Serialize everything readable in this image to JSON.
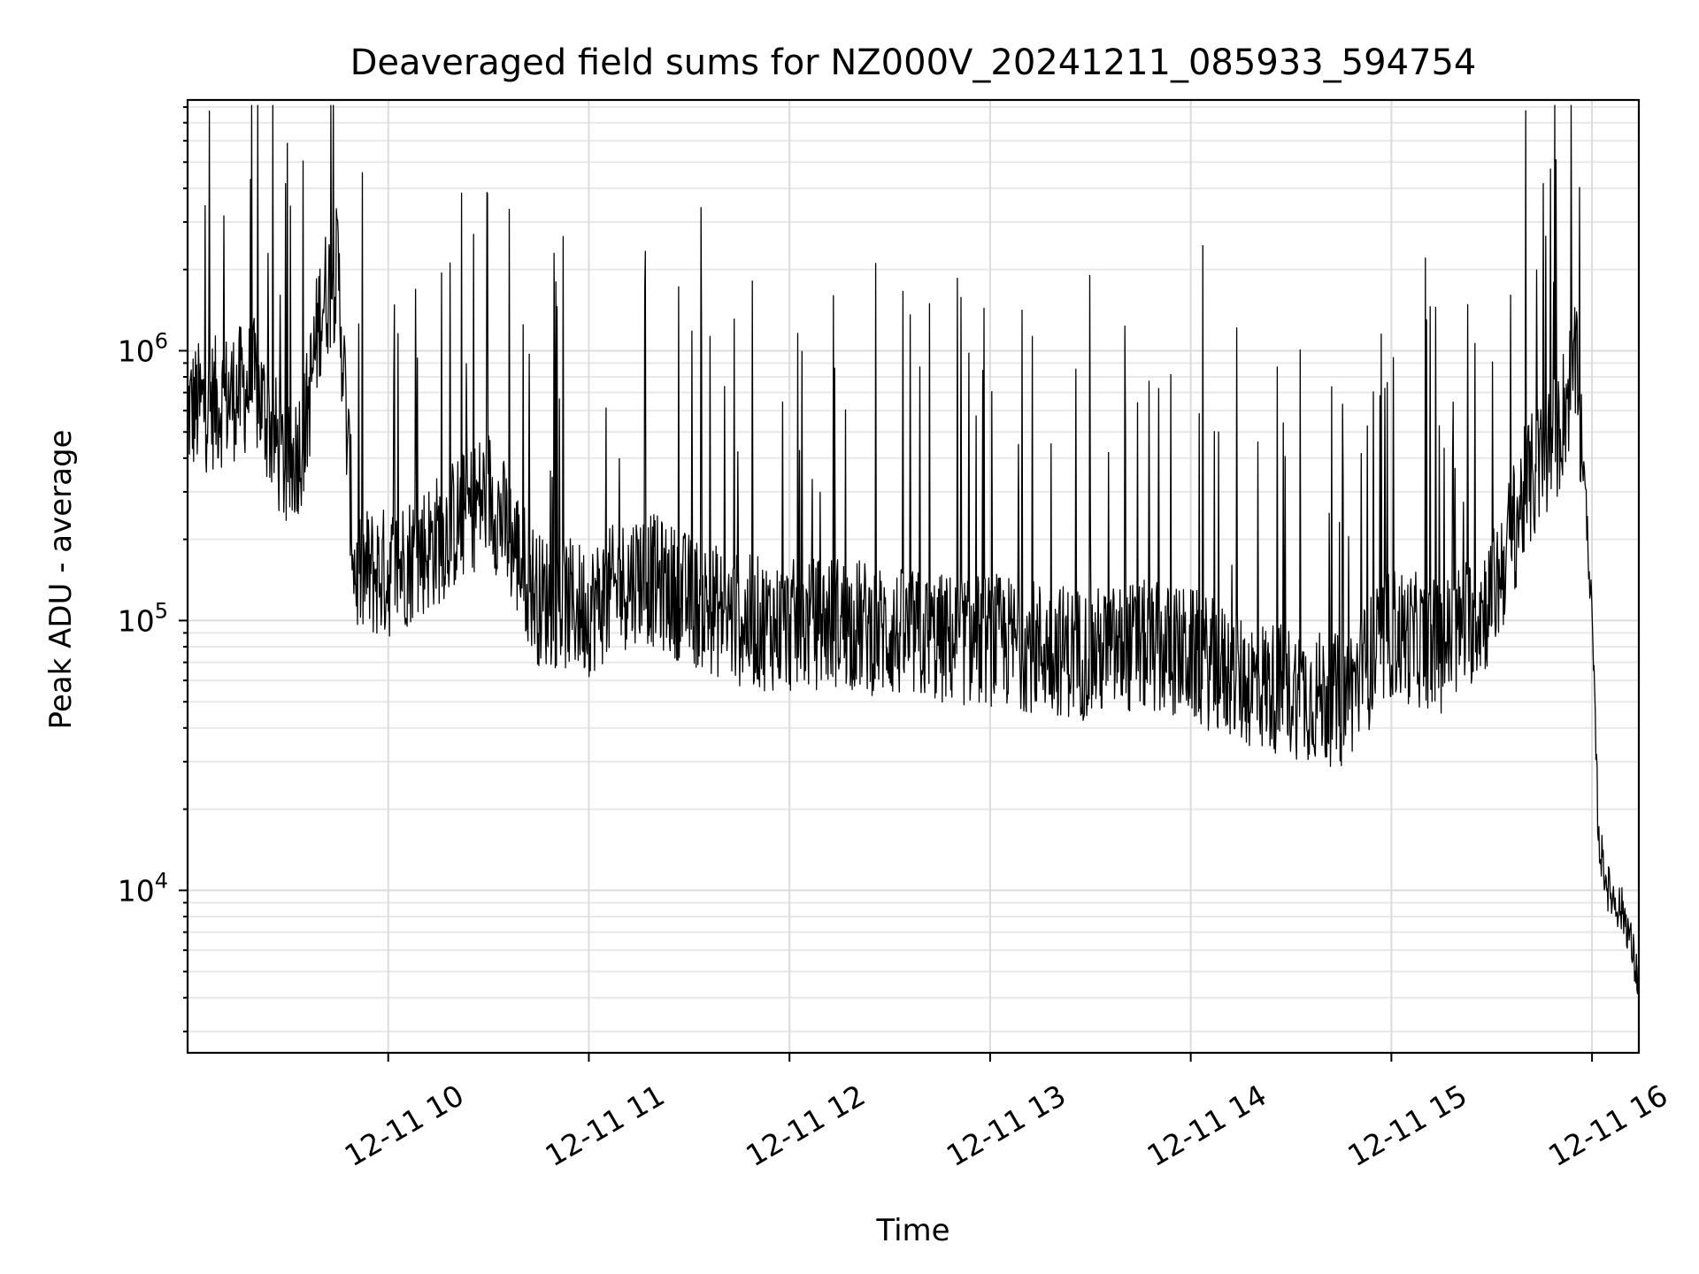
{
  "chart_data": {
    "type": "line",
    "title": "Deaveraged field sums for NZ000V_20241211_085933_594754",
    "xlabel": "Time",
    "ylabel": "Peak ADU - average",
    "yscale": "log",
    "ylim": [
      2500,
      8500000
    ],
    "xlim": [
      "2024-12-11 09:00",
      "2024-12-11 16:14"
    ],
    "x_ticks": [
      {
        "value": "2024-12-11 10:00",
        "label": "12-11 10"
      },
      {
        "value": "2024-12-11 11:00",
        "label": "12-11 11"
      },
      {
        "value": "2024-12-11 12:00",
        "label": "12-11 12"
      },
      {
        "value": "2024-12-11 13:00",
        "label": "12-11 13"
      },
      {
        "value": "2024-12-11 14:00",
        "label": "12-11 14"
      },
      {
        "value": "2024-12-11 15:00",
        "label": "12-11 15"
      },
      {
        "value": "2024-12-11 16:00",
        "label": "12-11 16"
      }
    ],
    "y_ticks": [
      {
        "value": 10000,
        "base": "10",
        "exp": "4"
      },
      {
        "value": 100000,
        "base": "10",
        "exp": "5"
      },
      {
        "value": 1000000,
        "base": "10",
        "exp": "6"
      }
    ],
    "grid": true,
    "grid_minor": true,
    "line_color": "#000000",
    "series": [
      {
        "x": [
          "2024-12-11 09:00",
          "2024-12-11 09:10",
          "2024-12-11 09:20",
          "2024-12-11 09:30",
          "2024-12-11 09:35",
          "2024-12-11 09:40",
          "2024-12-11 09:45",
          "2024-12-11 09:50",
          "2024-12-11 10:00",
          "2024-12-11 10:15",
          "2024-12-11 10:30",
          "2024-12-11 10:45",
          "2024-12-11 11:00",
          "2024-12-11 11:15",
          "2024-12-11 11:30",
          "2024-12-11 11:45",
          "2024-12-11 12:00",
          "2024-12-11 12:15",
          "2024-12-11 12:30",
          "2024-12-11 12:45",
          "2024-12-11 13:00",
          "2024-12-11 13:15",
          "2024-12-11 13:30",
          "2024-12-11 13:45",
          "2024-12-11 14:00",
          "2024-12-11 14:15",
          "2024-12-11 14:30",
          "2024-12-11 14:45",
          "2024-12-11 15:00",
          "2024-12-11 15:15",
          "2024-12-11 15:30",
          "2024-12-11 15:40",
          "2024-12-11 15:50",
          "2024-12-11 15:55",
          "2024-12-11 15:58",
          "2024-12-11 16:00",
          "2024-12-11 16:02",
          "2024-12-11 16:05",
          "2024-12-11 16:10",
          "2024-12-11 16:14"
        ],
        "y": [
          600000,
          650000,
          750000,
          350000,
          500000,
          1500000,
          2000000,
          150000,
          150000,
          200000,
          300000,
          120000,
          110000,
          150000,
          120000,
          100000,
          95000,
          100000,
          90000,
          85000,
          85000,
          80000,
          75000,
          80000,
          75000,
          60000,
          55000,
          50000,
          90000,
          80000,
          120000,
          300000,
          500000,
          900000,
          300000,
          100000,
          15000,
          10000,
          8000,
          4500
        ]
      }
    ]
  }
}
